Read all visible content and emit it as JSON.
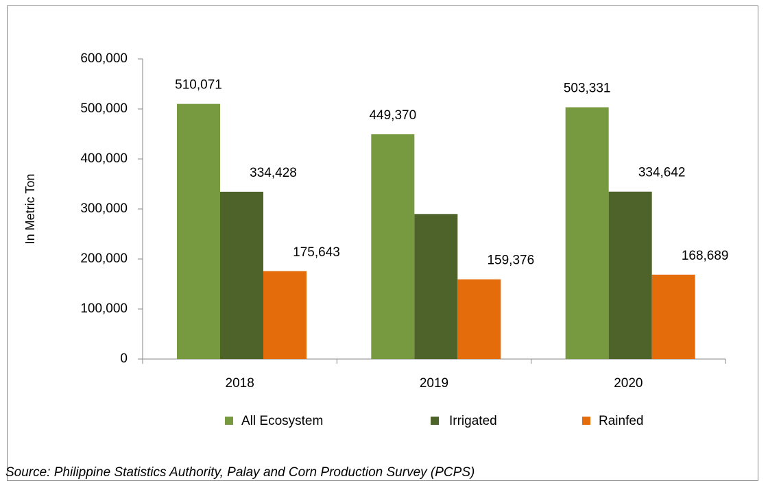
{
  "chart_data": {
    "type": "bar",
    "y_label": "In Metric Ton",
    "source": "Source: Philippine Statistics Authority, Palay and Corn Production Survey (PCPS)",
    "categories": [
      "2018",
      "2019",
      "2020"
    ],
    "series": [
      {
        "name": "All Ecosystem",
        "color": "#77993f",
        "values": [
          510071,
          449370,
          503331
        ],
        "value_labels": [
          "510,071",
          "449,370",
          "503,331"
        ]
      },
      {
        "name": "Irrigated",
        "color": "#4e6329",
        "values": [
          334428,
          290000,
          334642
        ],
        "value_labels": [
          "334,428",
          null,
          "334,642"
        ]
      },
      {
        "name": "Rainfed",
        "color": "#e46c0a",
        "values": [
          175643,
          159376,
          168689
        ],
        "value_labels": [
          "175,643",
          "159,376",
          "168,689"
        ]
      }
    ],
    "ylim": [
      0,
      600000
    ],
    "yticks": [
      0,
      {
        "value": 100000,
        "label": "100,000"
      },
      {
        "value": 200000,
        "label": "200,000"
      },
      {
        "value": 300000,
        "label": "300,000"
      },
      {
        "value": 400000,
        "label": "400,000"
      },
      {
        "value": 500000,
        "label": "500,000"
      },
      {
        "value": 600000,
        "label": "600,000"
      }
    ],
    "legend": "bottom"
  }
}
